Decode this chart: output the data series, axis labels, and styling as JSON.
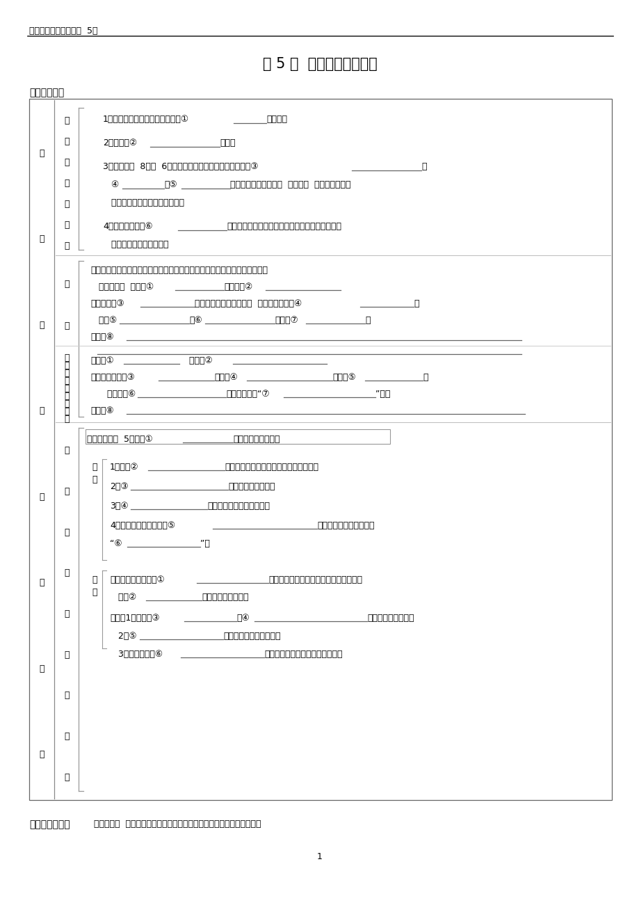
{
  "page_width": 9.2,
  "page_height": 12.98,
  "bg_color": "#ffffff",
  "header_text": "高一历史必修一学案（  5）",
  "title": "第 5 课  古代希腊民主政治",
  "section1": "一、预习自学",
  "section2_label": "二、本课目标：",
  "section2_text": "课标要求：  了解希腊自然地理环境和希腊城邦制度对希腊文明的影响。",
  "page_num": "1",
  "outer_vert": [
    "古",
    "代",
    "希",
    "腊",
    "民",
    "主",
    "政",
    "治"
  ],
  "sec1_vert": [
    "希",
    "腊",
    "文",
    "明",
    "的",
    "摇",
    "璓"
  ],
  "sec2a_vert": [
    "奕",
    "基"
  ],
  "sec2b_vert": [
    "雅",
    "典",
    "民",
    "主",
    "政",
    "治",
    "的",
    "确",
    "立"
  ],
  "sec3_vert": [
    "雅",
    "典",
    "民",
    "主",
    "的",
    "黄",
    "金",
    "时",
    "代"
  ],
  "biaoxian_vert": [
    "表",
    "现"
  ],
  "pingjia_vert": [
    "评",
    "价"
  ],
  "s1l1a": "1）独特的地理环境：古代希腊以①",
  "s1l1b": "为依托。",
  "s1l2a": "2）经济：②",
  "s1l2b": "发达。",
  "s1l3a": "3）政治：前  8－前  6世纪，希腊出现了两百个小国，史称③",
  "s1l3b": "。",
  "s1l4a": "   ④",
  "s1l4b": "和⑤",
  "s1l4c": "构成城邦的基本特征。  城邦小，  使公民能更直接",
  "s1l5": "   参与城邦政治、追求民主权利。",
  "s1l6a": "4）阶级：新兴的⑥",
  "s1l6b": "阶层经济实力雄厚，但政治地位低下，他们追求民",
  "s1l7": "   主权利的渴望更加强烈。",
  "s2a_l1": "背景：旧氏族贵族的专横统治；新兴工商业阶层不满；实行债务奴隶制，社会",
  "s2a_l2a": "   矛盾尖锐。  时间：①",
  "s2a_l2b": "；人物：②",
  "s2a_l3a": "内容：根据③",
  "s2a_l3b": "，把公民分为四个等级；  最高权利机构是④",
  "s2a_l3c": "；",
  "s2a_l4a": "   建立⑤",
  "s2a_l4b": "和⑥",
  "s2a_l4c": "；废除⑦",
  "s2a_l4d": "。",
  "s2a_l5a": "影响：⑧",
  "s2b_l1a": "时间：①",
  "s2b_l1b": "   人物：②",
  "s2b_l2a": "内容：建立十个③",
  "s2b_l2b": "；设立④",
  "s2b_l2c": "；组成⑤",
  "s2b_l2d": "；",
  "s2b_l3a": "   继续扩大⑥",
  "s2b_l3b": "的权力；实行“⑦",
  "s2b_l3c": "”等。",
  "s2b_l4a": "影响：⑧",
  "s3_time_a": "时间：公元前  5世纪，①",
  "s3_time_b": "担任首席将军期间。",
  "bx1a": "1）所有②",
  "bx1b": "可以担任几乎一切官职、参加公民大会；",
  "bx2a": "2）③",
  "bx2b": "的职能进一步扩大；",
  "bx3a": "3）④",
  "bx3b": "成为最高司法与监察机关；",
  "bx4a": "4）为鼓励公民参政，向⑤",
  "bx4b": "的公民发放工资，还发放",
  "bx5a": "“⑥",
  "bx5b": "”。",
  "pj_r1a": "作用：为近现代西方①",
  "pj_r1b": "奉定了基础；民主氛围创造的空间，使雅",
  "pj_r2a": "   典在②",
  "pj_r2b": "领域取得辉煌成就。",
  "pj_l1a": "局限：1）仅限于③",
  "pj_l1b": "，④",
  "pj_l1c": "被排斥在民主之外。",
  "pj_l2a": "   2）⑤",
  "pj_l2b": "的产物，只适用于城邦。",
  "pj_l3a": "   3）过于泛滥的⑥",
  "pj_l3b": "成为政治腐败，社会动乱的隐患。"
}
